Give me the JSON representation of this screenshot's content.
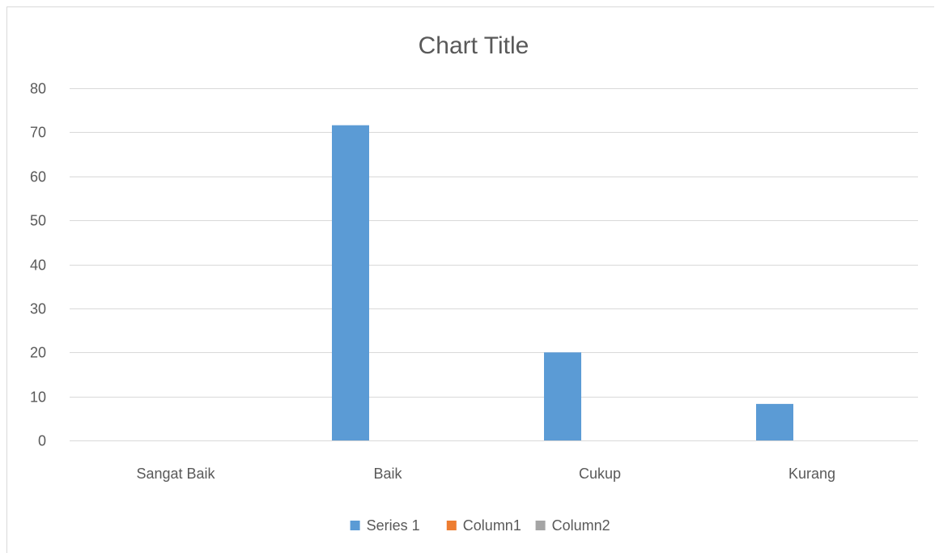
{
  "chart_data": {
    "type": "bar",
    "title": "Chart Title",
    "categories": [
      "Sangat Baik",
      "Baik",
      "Cukup",
      "Kurang"
    ],
    "series": [
      {
        "name": "Series 1",
        "values": [
          0,
          71.6,
          20,
          8.3
        ],
        "color": "#5b9bd5"
      },
      {
        "name": "Column1",
        "values": [
          0,
          0,
          0,
          0
        ],
        "color": "#ed7d31"
      },
      {
        "name": "Column2",
        "values": [
          0,
          0,
          0,
          0
        ],
        "color": "#a5a5a5"
      }
    ],
    "ylim": [
      0,
      80
    ],
    "yticks": [
      0,
      10,
      20,
      30,
      40,
      50,
      60,
      70,
      80
    ],
    "grid": true,
    "legend": "bottom",
    "gridline_color": "#d9d9d9",
    "axis_color": "#d9d9d9",
    "text_color": "#595959"
  }
}
